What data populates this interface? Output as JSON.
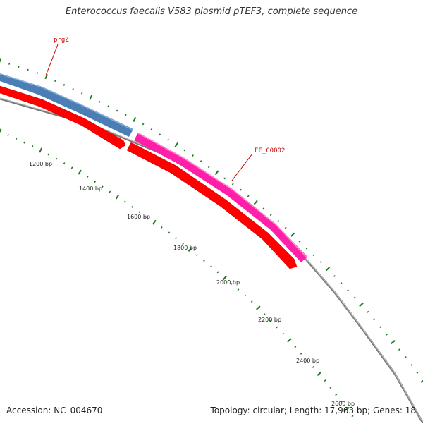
{
  "title": "Enterococcus faecalis V583 plasmid pTEF3, complete sequence",
  "accession_text": "Accession: NC_004670",
  "summary_text": "Topology: circular; Length: 17,963 bp; Genes: 18",
  "colors": {
    "backbone": "#888888",
    "gene_blue": "#4a7fb5",
    "gene_pink": "#ff1fa8",
    "cds_red": "#ff0000",
    "tick_green": "#1a7a1a",
    "label_red": "#cc0000"
  },
  "tick_labels": [
    "1200 bp",
    "1400 bp",
    "1600 bp",
    "1800 bp",
    "2000 bp",
    "2200 bp",
    "2400 bp",
    "2600 bp"
  ],
  "genes": [
    {
      "name": "prgZ",
      "color": "blue"
    },
    {
      "name": "EF_C0002",
      "color": "pink"
    }
  ]
}
